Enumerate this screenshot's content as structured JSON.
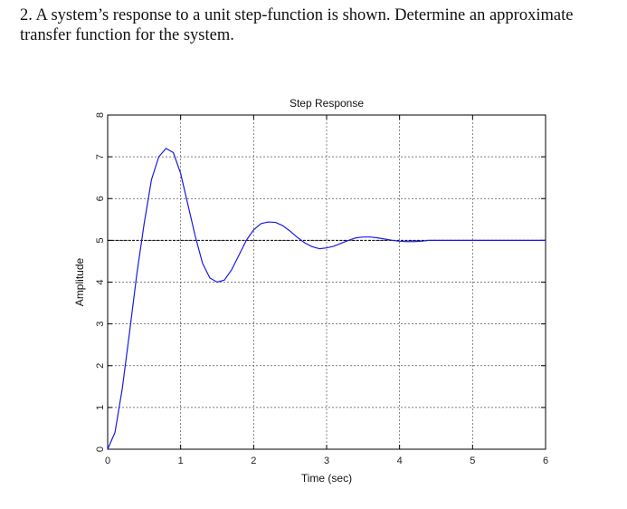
{
  "question": {
    "text": "2.  A system’s response to a unit step-function is shown. Determine an approximate transfer function for the system."
  },
  "chart_data": {
    "type": "line",
    "title": "Step Response",
    "xlabel": "Time (sec)",
    "ylabel": "Amplitude",
    "xlim": [
      0,
      6
    ],
    "ylim": [
      0,
      8
    ],
    "xticks": [
      "0",
      "1",
      "2",
      "3",
      "4",
      "5",
      "6"
    ],
    "yticks": [
      "0",
      "1",
      "2",
      "3",
      "4",
      "5",
      "6",
      "7",
      "8"
    ],
    "grid": true,
    "steady_state_line": 5,
    "series": [
      {
        "color": "#1a1ae6",
        "x": [
          0,
          0.1,
          0.2,
          0.3,
          0.4,
          0.5,
          0.6,
          0.7,
          0.8,
          0.9,
          1.0,
          1.1,
          1.2,
          1.3,
          1.4,
          1.5,
          1.6,
          1.7,
          1.8,
          1.9,
          2.0,
          2.1,
          2.2,
          2.3,
          2.4,
          2.5,
          2.6,
          2.7,
          2.8,
          2.9,
          3.0,
          3.1,
          3.2,
          3.3,
          3.4,
          3.5,
          3.6,
          3.7,
          3.8,
          3.9,
          4.0,
          4.1,
          4.2,
          4.3,
          4.4,
          4.5,
          4.6,
          4.7,
          4.8,
          4.9,
          5.0,
          5.1,
          5.2,
          5.3,
          5.5,
          5.8,
          6.0
        ],
        "y": [
          0,
          0.4,
          1.45,
          2.8,
          4.2,
          5.4,
          6.45,
          7.0,
          7.2,
          7.1,
          6.6,
          5.85,
          5.1,
          4.45,
          4.1,
          4.0,
          4.05,
          4.3,
          4.65,
          5.0,
          5.25,
          5.4,
          5.44,
          5.43,
          5.35,
          5.22,
          5.07,
          4.94,
          4.85,
          4.8,
          4.82,
          4.86,
          4.93,
          5.0,
          5.06,
          5.08,
          5.08,
          5.06,
          5.03,
          5.0,
          4.98,
          4.97,
          4.97,
          4.98,
          5.0,
          5.0,
          5.0,
          5.0,
          5.0,
          5.0,
          5.0,
          5.0,
          5.0,
          5.0,
          5.0,
          5.0,
          5.0
        ]
      }
    ]
  }
}
